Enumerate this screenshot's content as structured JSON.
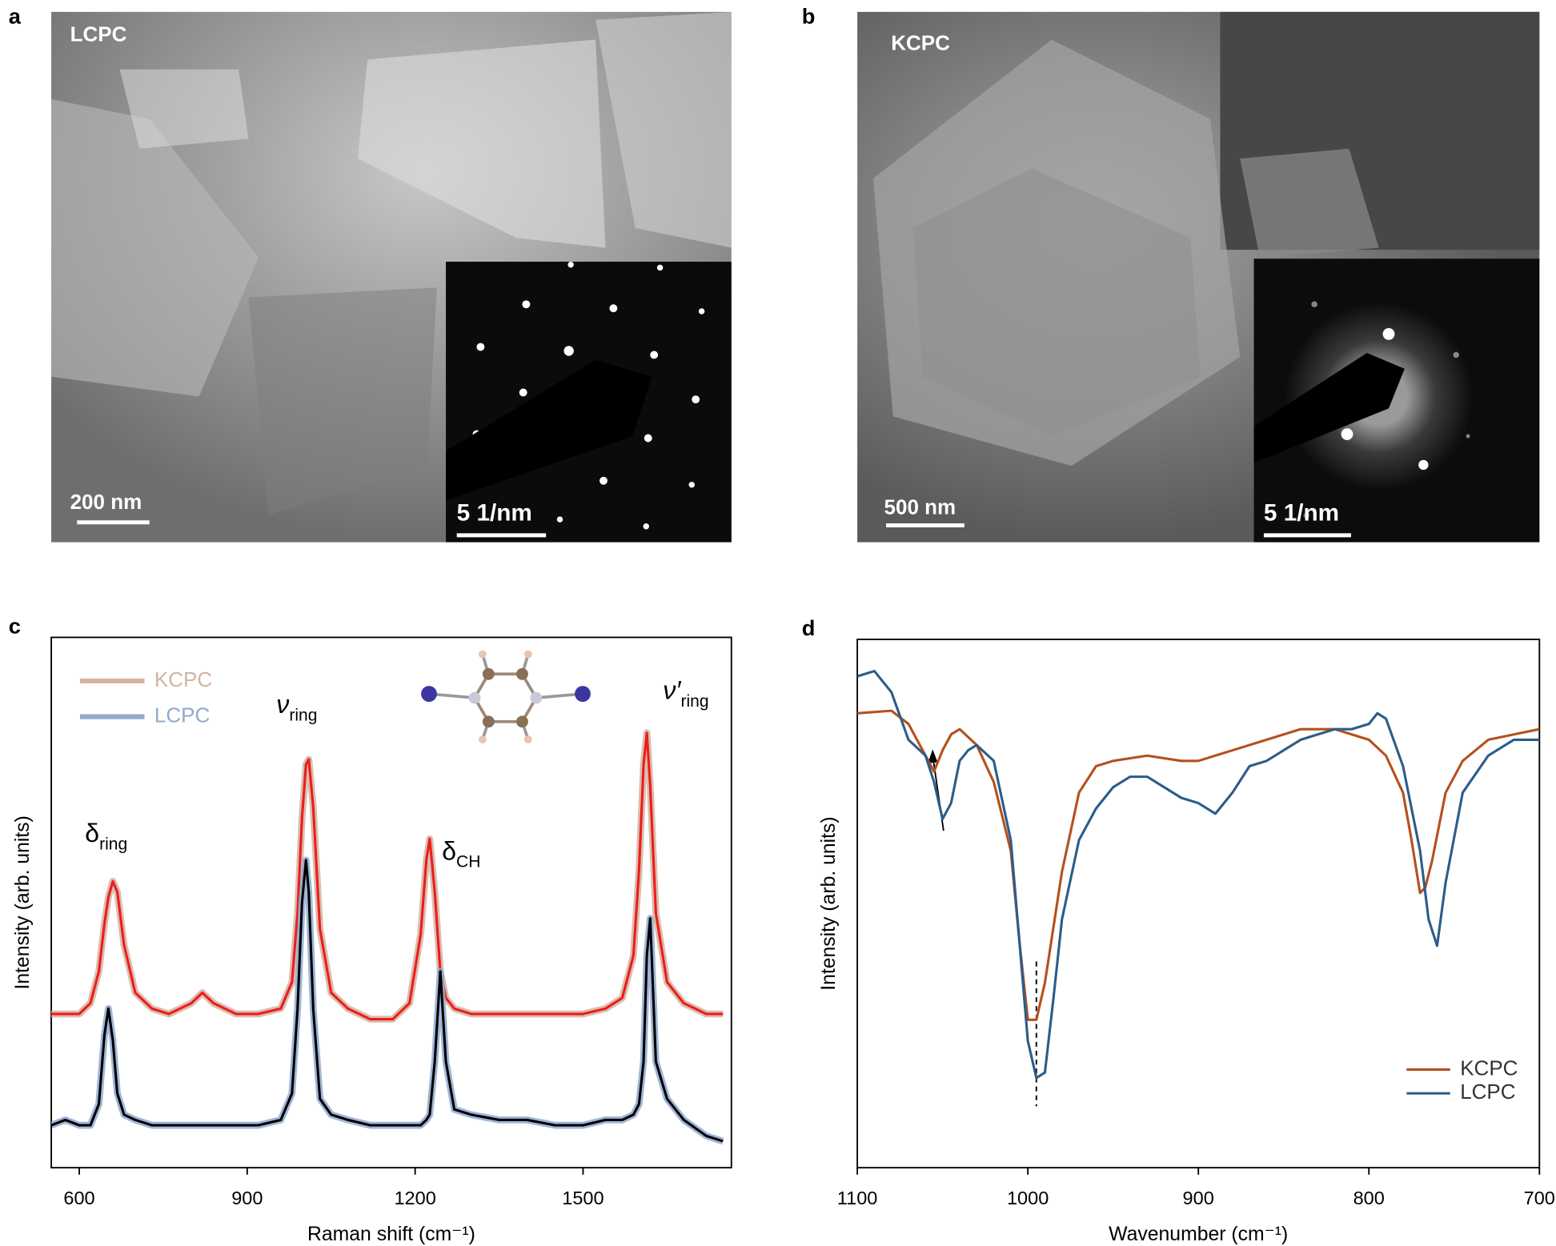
{
  "panels": [
    {
      "label": "a",
      "sample": "LCPC",
      "scale_bar": "200 nm",
      "inset_scale_bar": "5 1/nm"
    },
    {
      "label": "b",
      "sample": "KCPC",
      "scale_bar": "500 nm",
      "inset_scale_bar": "5 1/nm"
    }
  ],
  "chart_data": [
    {
      "type": "line",
      "panel_label": "c",
      "xlabel": "Raman shift (cm⁻¹)",
      "ylabel": "Intensity (arb. units)",
      "xlim": [
        550,
        1765
      ],
      "xticks": [
        600,
        900,
        1200,
        1500
      ],
      "ylim": [
        0,
        100
      ],
      "legend": "upper left",
      "x": [
        550,
        575,
        600,
        620,
        635,
        645,
        652,
        660,
        668,
        680,
        700,
        730,
        760,
        800,
        820,
        840,
        880,
        920,
        960,
        980,
        990,
        998,
        1005,
        1010,
        1018,
        1030,
        1050,
        1080,
        1120,
        1160,
        1190,
        1210,
        1220,
        1226,
        1235,
        1245,
        1255,
        1270,
        1300,
        1350,
        1400,
        1450,
        1500,
        1540,
        1570,
        1590,
        1600,
        1608,
        1614,
        1620,
        1630,
        1650,
        1680,
        1720,
        1750
      ],
      "series": [
        {
          "name": "KCPC",
          "color": "#d2b3a0",
          "line_color": "#ee1c1c",
          "values": [
            29,
            29,
            29,
            31,
            37,
            46,
            51,
            54,
            52,
            42,
            33,
            30,
            29,
            31,
            33,
            31,
            29,
            29,
            30,
            35,
            48,
            66,
            76,
            77,
            68,
            45,
            33,
            30,
            28,
            28,
            31,
            44,
            58,
            62,
            52,
            37,
            32,
            30,
            29,
            29,
            29,
            29,
            29,
            30,
            32,
            40,
            56,
            76,
            82,
            72,
            48,
            35,
            31,
            29,
            29
          ]
        },
        {
          "name": "LCPC",
          "color": "#8fa9cf",
          "line_color": "#000000",
          "values": [
            8,
            9,
            8,
            8,
            12,
            25,
            30,
            24,
            14,
            10,
            9,
            8,
            8,
            8,
            8,
            8,
            8,
            8,
            9,
            14,
            30,
            50,
            58,
            52,
            30,
            13,
            10,
            9,
            8,
            8,
            8,
            8,
            9,
            10,
            20,
            37,
            20,
            11,
            10,
            9,
            9,
            8,
            8,
            9,
            9,
            10,
            12,
            20,
            40,
            47,
            20,
            13,
            9,
            6,
            5
          ]
        }
      ],
      "annotations": [
        {
          "text": "δ",
          "sub": "ring"
        },
        {
          "text": "ν",
          "sub": "ring"
        },
        {
          "text": "δ",
          "sub": "CH"
        },
        {
          "text": "ν′",
          "sub": "ring"
        }
      ]
    },
    {
      "type": "line",
      "panel_label": "d",
      "xlabel": "Wavenumber (cm⁻¹)",
      "ylabel": "Intensity (arb. units)",
      "xlim": [
        1100,
        700
      ],
      "xticks": [
        1100,
        1000,
        900,
        800,
        700
      ],
      "ylim": [
        0,
        100
      ],
      "legend": "lower right",
      "marker_x": 995,
      "series": [
        {
          "name": "KCPC",
          "color": "#b5501c",
          "x": [
            1100,
            1080,
            1070,
            1060,
            1055,
            1050,
            1045,
            1040,
            1030,
            1020,
            1010,
            1005,
            1000,
            995,
            990,
            980,
            970,
            960,
            950,
            930,
            910,
            900,
            880,
            860,
            840,
            820,
            800,
            790,
            780,
            775,
            770,
            767,
            763,
            755,
            745,
            730,
            715,
            700
          ],
          "values": [
            86,
            86.5,
            84,
            78,
            75,
            79,
            82,
            83,
            80,
            73,
            60,
            43,
            28,
            28,
            35,
            56,
            71,
            76,
            77,
            78,
            77,
            77,
            79,
            81,
            83,
            83,
            81,
            78,
            71,
            62,
            52,
            53,
            58,
            71,
            77,
            81,
            82,
            83
          ]
        },
        {
          "name": "LCPC",
          "color": "#2a5d8a",
          "x": [
            1100,
            1090,
            1080,
            1070,
            1060,
            1055,
            1050,
            1045,
            1040,
            1035,
            1030,
            1020,
            1010,
            1005,
            1000,
            995,
            990,
            985,
            980,
            970,
            960,
            950,
            940,
            930,
            910,
            900,
            890,
            880,
            870,
            860,
            850,
            840,
            820,
            810,
            800,
            795,
            790,
            780,
            770,
            765,
            760,
            755,
            745,
            730,
            715,
            700
          ],
          "values": [
            93,
            94,
            90,
            81,
            78,
            73,
            66,
            69,
            77,
            79,
            80,
            77,
            62,
            43,
            24,
            17,
            18,
            32,
            47,
            62,
            68,
            72,
            74,
            74,
            70,
            69,
            67,
            71,
            76,
            77,
            79,
            81,
            83,
            83,
            84,
            86,
            85,
            76,
            60,
            47,
            42,
            54,
            71,
            78,
            81,
            81
          ]
        }
      ]
    }
  ]
}
